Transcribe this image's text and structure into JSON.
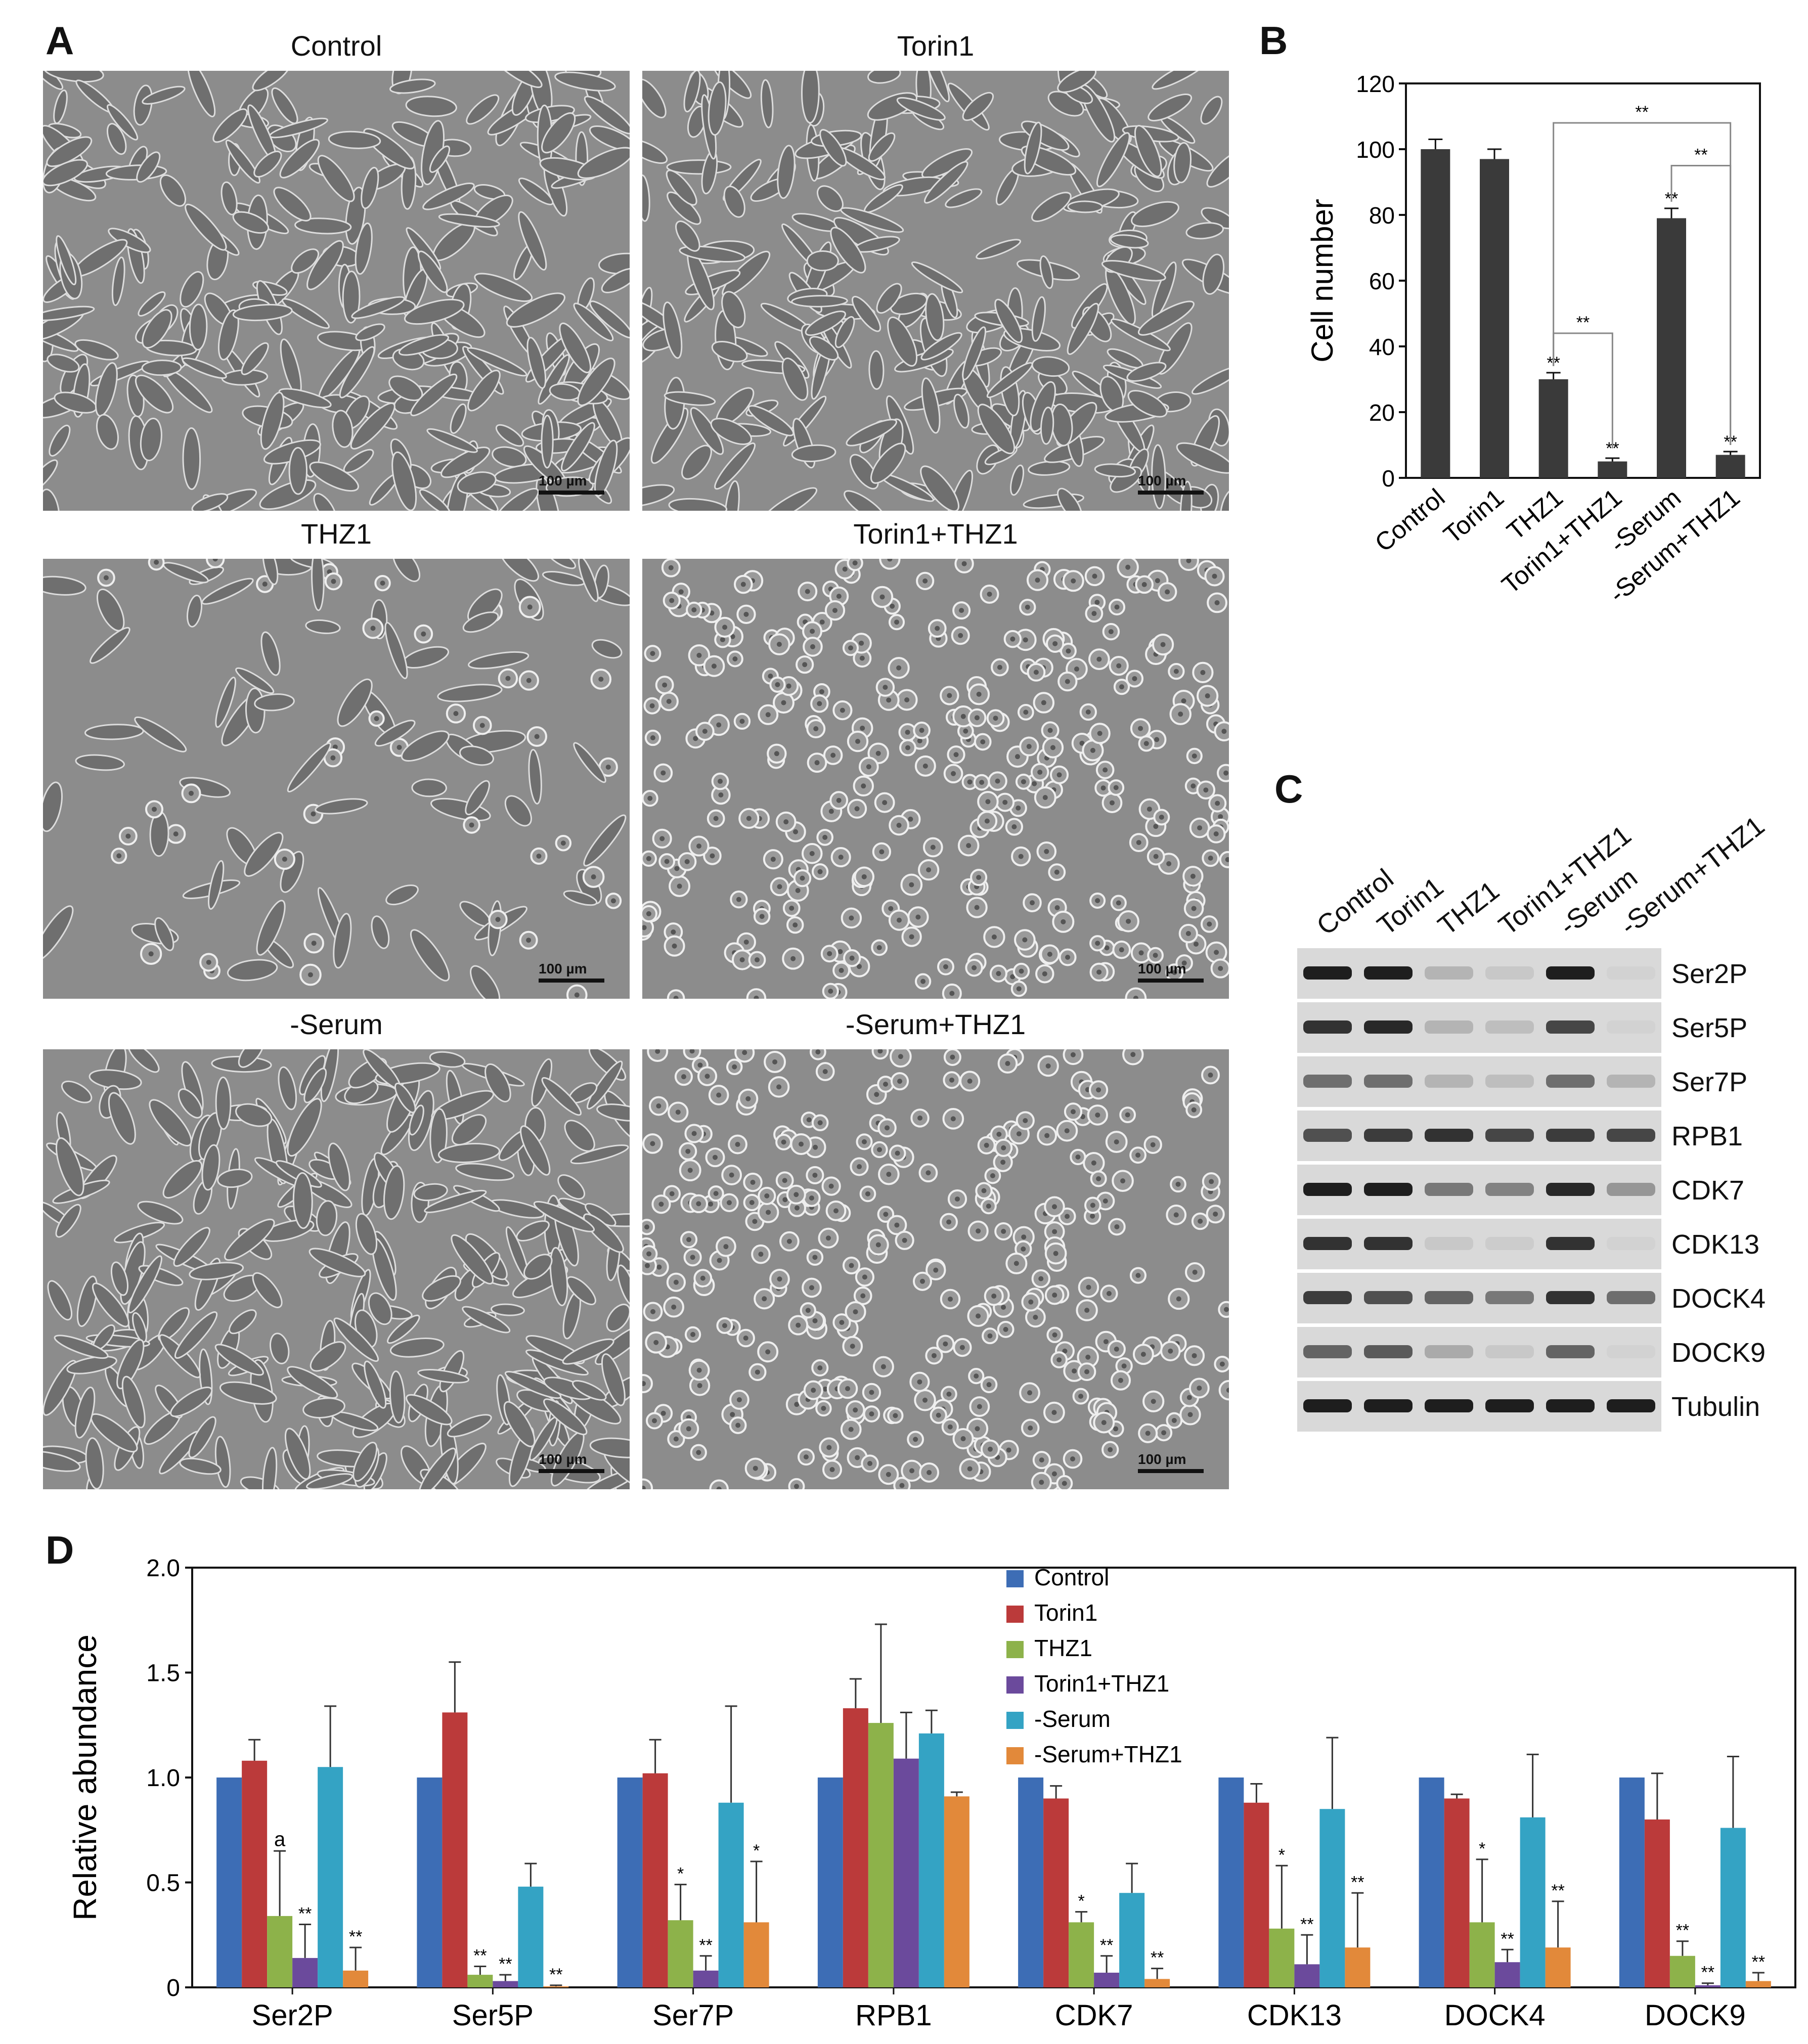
{
  "panels": {
    "A": "A",
    "B": "B",
    "C": "C",
    "D": "D"
  },
  "micrographs": {
    "titles": [
      "Control",
      "Torin1",
      "THZ1",
      "Torin1+THZ1",
      "-Serum",
      "-Serum+THZ1"
    ],
    "scale_bar_label": "100 µm"
  },
  "blot": {
    "lanes": [
      "Control",
      "Torin1",
      "THZ1",
      "Torin1+THZ1",
      "-Serum",
      "-Serum+THZ1"
    ],
    "proteins": [
      "Ser2P",
      "Ser5P",
      "Ser7P",
      "RPB1",
      "CDK7",
      "CDK13",
      "DOCK4",
      "DOCK9",
      "Tubulin"
    ],
    "band_intensity": [
      [
        0.95,
        0.95,
        0.2,
        0.1,
        0.95,
        0.05
      ],
      [
        0.85,
        0.9,
        0.2,
        0.15,
        0.75,
        0.05
      ],
      [
        0.55,
        0.55,
        0.2,
        0.15,
        0.55,
        0.2
      ],
      [
        0.7,
        0.8,
        0.85,
        0.75,
        0.8,
        0.75
      ],
      [
        0.95,
        0.95,
        0.5,
        0.45,
        0.9,
        0.35
      ],
      [
        0.85,
        0.85,
        0.1,
        0.08,
        0.85,
        0.05
      ],
      [
        0.8,
        0.7,
        0.6,
        0.5,
        0.85,
        0.55
      ],
      [
        0.6,
        0.65,
        0.25,
        0.1,
        0.6,
        0.05
      ],
      [
        0.95,
        0.95,
        0.95,
        0.95,
        0.95,
        0.95
      ]
    ]
  },
  "chart_data": [
    {
      "type": "bar",
      "panel": "B",
      "categories": [
        "Control",
        "Torin1",
        "THZ1",
        "Torin1+THZ1",
        "-Serum",
        "-Serum+THZ1"
      ],
      "values": [
        100,
        97,
        30,
        5,
        79,
        7
      ],
      "errors": [
        3,
        3,
        2,
        1,
        3,
        1
      ],
      "ylabel": "Cell number",
      "xlabel": "",
      "ylim": [
        0,
        120
      ],
      "yticks": [
        0,
        20,
        40,
        60,
        80,
        100,
        120
      ],
      "bar_color": "#3a3a3a",
      "annotations": [
        "",
        "",
        "**",
        "**",
        "**",
        "**"
      ],
      "comparison_label": "**",
      "grid": false
    },
    {
      "type": "bar",
      "panel": "D",
      "categories": [
        "Ser2P",
        "Ser5P",
        "Ser7P",
        "RPB1",
        "CDK7",
        "CDK13",
        "DOCK4",
        "DOCK9"
      ],
      "ylabel": "Relative abundance",
      "xlabel": "",
      "ylim": [
        0,
        2.0
      ],
      "yticks": [
        "0",
        "0.5",
        "1.0",
        "1.5",
        "2.0"
      ],
      "legend_position": "top-center",
      "grid": false,
      "series": [
        {
          "name": "Control",
          "color": "#3d6db5",
          "values": [
            1.0,
            1.0,
            1.0,
            1.0,
            1.0,
            1.0,
            1.0,
            1.0
          ],
          "errors": [
            0,
            0,
            0,
            0,
            0,
            0,
            0,
            0
          ],
          "marks": [
            "",
            "",
            "",
            "",
            "",
            "",
            "",
            ""
          ]
        },
        {
          "name": "Torin1",
          "color": "#bb3a3a",
          "values": [
            1.08,
            1.31,
            1.02,
            1.33,
            0.9,
            0.88,
            0.9,
            0.8
          ],
          "errors": [
            0.1,
            0.24,
            0.16,
            0.14,
            0.06,
            0.09,
            0.02,
            0.22
          ],
          "marks": [
            "",
            "",
            "",
            "",
            "",
            "",
            "",
            ""
          ]
        },
        {
          "name": "THZ1",
          "color": "#8db24a",
          "values": [
            0.34,
            0.06,
            0.32,
            1.26,
            0.31,
            0.28,
            0.31,
            0.15
          ],
          "errors": [
            0.31,
            0.04,
            0.17,
            0.47,
            0.05,
            0.3,
            0.3,
            0.07
          ],
          "marks": [
            "a",
            "**",
            "*",
            "",
            "*",
            "*",
            "*",
            "**"
          ]
        },
        {
          "name": "Torin1+THZ1",
          "color": "#6b4a9c",
          "values": [
            0.14,
            0.03,
            0.08,
            1.09,
            0.07,
            0.11,
            0.12,
            0.01
          ],
          "errors": [
            0.16,
            0.03,
            0.07,
            0.22,
            0.08,
            0.14,
            0.06,
            0.01
          ],
          "marks": [
            "**",
            "**",
            "**",
            "",
            "**",
            "**",
            "**",
            "**"
          ]
        },
        {
          "name": "-Serum",
          "color": "#34a3c4",
          "values": [
            1.05,
            0.48,
            0.88,
            1.21,
            0.45,
            0.85,
            0.81,
            0.76
          ],
          "errors": [
            0.29,
            0.11,
            0.46,
            0.11,
            0.14,
            0.34,
            0.3,
            0.34
          ],
          "marks": [
            "",
            "",
            "",
            "",
            "",
            "",
            "",
            ""
          ]
        },
        {
          "name": "-Serum+THZ1",
          "color": "#e2893a",
          "values": [
            0.08,
            0.005,
            0.31,
            0.91,
            0.04,
            0.19,
            0.19,
            0.03
          ],
          "errors": [
            0.11,
            0.005,
            0.29,
            0.02,
            0.05,
            0.26,
            0.22,
            0.04
          ],
          "marks": [
            "**",
            "**",
            "*",
            "",
            "**",
            "**",
            "**",
            "**"
          ]
        }
      ]
    }
  ]
}
